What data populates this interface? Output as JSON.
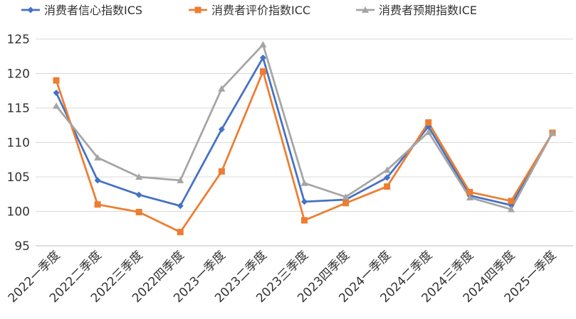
{
  "chart_data": {
    "type": "line",
    "title": "",
    "xlabel": "",
    "ylabel": "",
    "ylim": [
      95,
      125
    ],
    "yticks": [
      95,
      100,
      105,
      110,
      115,
      120,
      125
    ],
    "grid": true,
    "legend_position": "top",
    "categories": [
      "2022一季度",
      "2022二季度",
      "2022三季度",
      "2022四季度",
      "2023一季度",
      "2023二季度",
      "2023三季度",
      "2023四季度",
      "2024一季度",
      "2024二季度",
      "2024三季度",
      "2024四季度",
      "2025一季度"
    ],
    "series": [
      {
        "name": "消费者信心指数ICS",
        "color": "#4472C4",
        "marker": "diamond",
        "values": [
          117.2,
          104.5,
          102.4,
          100.8,
          111.9,
          122.3,
          101.4,
          101.7,
          104.9,
          112.3,
          102.3,
          100.9,
          111.4
        ]
      },
      {
        "name": "消费者评价指数ICC",
        "color": "#ED7D31",
        "marker": "square",
        "values": [
          119.0,
          101.0,
          99.9,
          97.0,
          105.8,
          120.3,
          98.7,
          101.2,
          103.6,
          112.9,
          102.8,
          101.5,
          111.4
        ]
      },
      {
        "name": "消费者预期指数ICE",
        "color": "#A5A5A5",
        "marker": "triangle",
        "values": [
          115.3,
          107.8,
          105.0,
          104.5,
          117.8,
          124.2,
          104.1,
          102.1,
          106.0,
          111.5,
          102.0,
          100.3,
          111.4
        ]
      }
    ]
  }
}
